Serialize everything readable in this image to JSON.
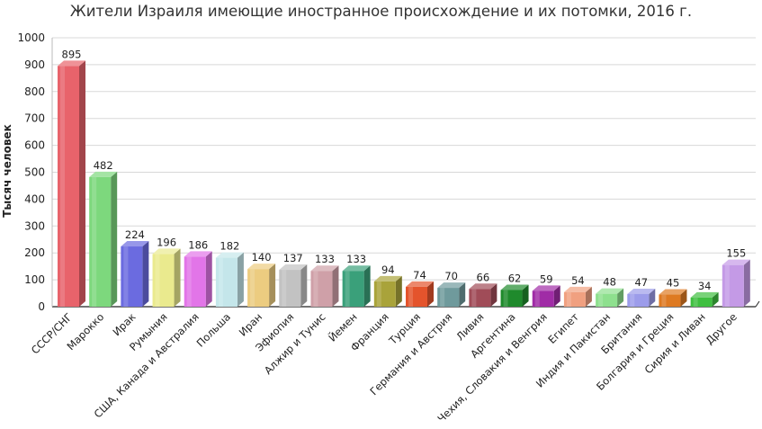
{
  "chart_data": {
    "type": "bar",
    "title": "Жители Израиля имеющие иностранное происхождение и их потомки, 2016 г.",
    "xlabel": "",
    "ylabel": "Тысяч человек",
    "ylim": [
      0,
      1000
    ],
    "yticks": [
      0,
      100,
      200,
      300,
      400,
      500,
      600,
      700,
      800,
      900,
      1000
    ],
    "grid": true,
    "legend": "none",
    "categories": [
      "СССР/СНГ",
      "Марокко",
      "Ирак",
      "Румыния",
      "США, Канада и Австралия",
      "Польша",
      "Иран",
      "Эфиопия",
      "Алжир и Тунис",
      "Йемен",
      "Франция",
      "Турция",
      "Германия и Австрия",
      "Ливия",
      "Аргентина",
      "Чехия, Словакия и Венгрия",
      "Египет",
      "Индия и Пакистан",
      "Британия",
      "Болгария и Греция",
      "Сирия и Ливан",
      "Другое"
    ],
    "values": [
      895,
      482,
      224,
      196,
      186,
      182,
      140,
      137,
      133,
      133,
      94,
      74,
      70,
      66,
      62,
      59,
      54,
      48,
      47,
      45,
      34,
      155
    ],
    "colors": [
      "#e8636b",
      "#7dd87d",
      "#6b6be0",
      "#eaea8e",
      "#e275e8",
      "#c4e6ea",
      "#eccc80",
      "#c2c2c2",
      "#cfa0a8",
      "#3aa07a",
      "#a9a33a",
      "#e4542c",
      "#6f9a9c",
      "#a04c58",
      "#1f8a2c",
      "#a02ca6",
      "#f0a080",
      "#8ee08e",
      "#9c9cea",
      "#de7a22",
      "#3fbf40",
      "#c49ae6"
    ]
  }
}
